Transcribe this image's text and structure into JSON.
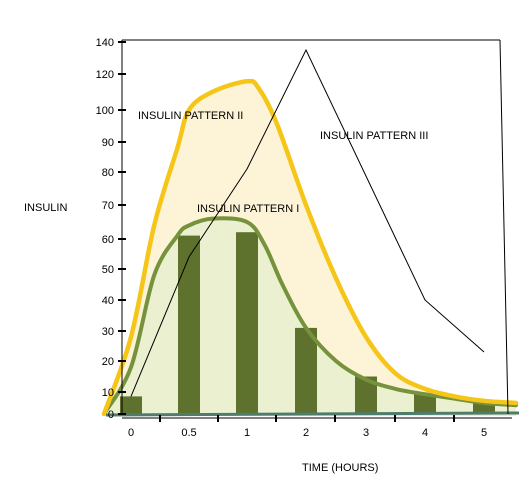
{
  "chart_data": {
    "type": "line",
    "xlabel": "TIME (HOURS)",
    "ylabel": "INSULIN",
    "x_ticks": [
      "0",
      "0.5",
      "1",
      "2",
      "3",
      "4",
      "5"
    ],
    "y_ticks": [
      "0",
      "10",
      "20",
      "30",
      "40",
      "50",
      "60",
      "70",
      "80",
      "90",
      "100",
      "120",
      "140"
    ],
    "grid": false,
    "colors": {
      "pattern_i_line": "#76923c",
      "pattern_i_fill": "#ebf0d0",
      "pattern_ii_line": "#f5c518",
      "pattern_ii_fill": "#fdf4d8",
      "bars": "#5e722d",
      "pattern_iii_line": "#000000",
      "baseline": "#4f7c6c"
    },
    "bars": {
      "name": "INSULIN PATTERN I",
      "x": [
        "0",
        "0.5",
        "1",
        "2",
        "3",
        "4",
        "5"
      ],
      "values": [
        8,
        61,
        62,
        31,
        15,
        9,
        5
      ]
    },
    "series": [
      {
        "name": "INSULIN PATTERN I",
        "x": [
          "-0.2",
          "0",
          "0.2",
          "0.4",
          "0.5",
          "0.7",
          "1",
          "1.3",
          "1.6",
          "2",
          "2.5",
          "3",
          "3.5",
          "4",
          "4.5",
          "5",
          "5.3"
        ],
        "values": [
          0,
          18,
          48,
          61,
          64,
          66,
          65,
          58,
          45,
          31,
          20,
          14,
          11,
          9,
          7,
          5,
          4
        ]
      },
      {
        "name": "INSULIN PATTERN II",
        "x": [
          "-0.2",
          "0",
          "0.2",
          "0.4",
          "0.5",
          "0.7",
          "1",
          "1.2",
          "1.5",
          "2",
          "2.5",
          "3",
          "3.5",
          "4",
          "4.5",
          "5",
          "5.3"
        ],
        "values": [
          0,
          28,
          64,
          88,
          100,
          110,
          116,
          112,
          96,
          70,
          47,
          28,
          16,
          11,
          8,
          6,
          5
        ]
      },
      {
        "name": "INSULIN PATTERN III",
        "x": [
          "0",
          "0.5",
          "1",
          "2",
          "4",
          "5"
        ],
        "values": [
          8,
          54,
          81,
          135,
          40,
          23
        ]
      }
    ],
    "annotations": [
      "INSULIN PATTERN II",
      "INSULIN PATTERN III",
      "INSULIN PATTERN I"
    ]
  }
}
